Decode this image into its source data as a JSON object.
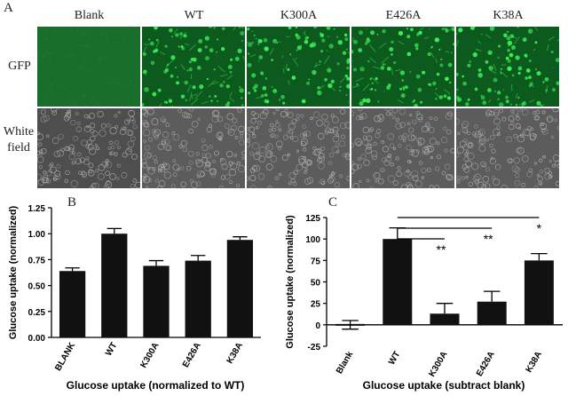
{
  "panel_a": {
    "letter": "A",
    "columns": [
      "Blank",
      "WT",
      "K300A",
      "E426A",
      "K38A"
    ],
    "rows": [
      {
        "label_lines": [
          "GFP"
        ]
      },
      {
        "label_lines": [
          "White",
          "field"
        ]
      }
    ],
    "colors": {
      "gfp_bg": "#0f6a24",
      "gfp_cell": "#3cf05a",
      "white_bg": "#5c5c5c",
      "white_cell": "#b4b4b4"
    }
  },
  "chart_data": [
    {
      "type": "bar",
      "panel": "B",
      "categories": [
        "BLANK",
        "WT",
        "K300A",
        "E426A",
        "K38A"
      ],
      "values": [
        0.64,
        1.0,
        0.69,
        0.74,
        0.94
      ],
      "errors": [
        0.03,
        0.05,
        0.05,
        0.05,
        0.03
      ],
      "ylabel": "Glucose uptake (normalized)",
      "xlabel": "Glucose uptake (normalized to WT)",
      "ylim": [
        0,
        1.25
      ],
      "yticks": [
        "0.00",
        "0.25",
        "0.50",
        "0.75",
        "1.00",
        "1.25"
      ],
      "bar_color": "#111111"
    },
    {
      "type": "bar",
      "panel": "C",
      "categories": [
        "Blank",
        "WT",
        "K300A",
        "E426A",
        "K38A"
      ],
      "values": [
        0,
        100,
        13,
        27,
        75
      ],
      "errors": [
        5,
        13,
        12,
        12,
        8
      ],
      "ylabel": "Glucose uptake (normalized)",
      "xlabel": "Glucose uptake (subtract blank)",
      "ylim": [
        -25,
        125
      ],
      "yticks": [
        "-25",
        "0",
        "25",
        "50",
        "75",
        "100",
        "125"
      ],
      "significance": [
        {
          "from": "WT",
          "to": "K300A",
          "label": "**"
        },
        {
          "from": "WT",
          "to": "E426A",
          "label": "**"
        },
        {
          "from": "WT",
          "to": "K38A",
          "label": "*"
        }
      ],
      "bar_color": "#111111"
    }
  ]
}
